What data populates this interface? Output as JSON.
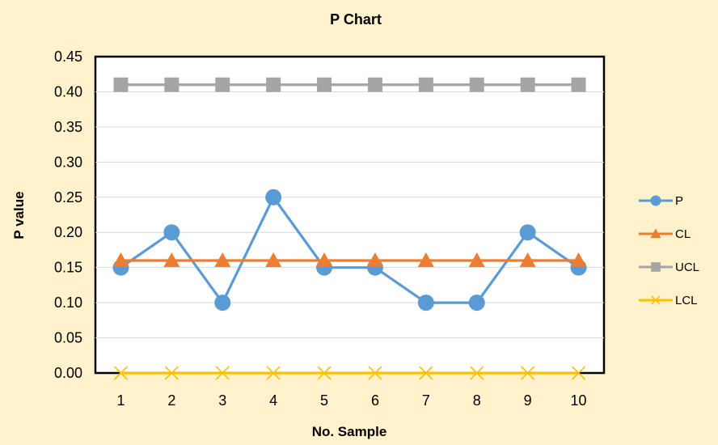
{
  "chart_data": {
    "type": "line",
    "title": "P Chart",
    "xlabel": "No. Sample",
    "ylabel": "P value",
    "categories": [
      "1",
      "2",
      "3",
      "4",
      "5",
      "6",
      "7",
      "8",
      "9",
      "10"
    ],
    "ylim": [
      0,
      0.45
    ],
    "yticks": [
      "0.00",
      "0.05",
      "0.10",
      "0.15",
      "0.20",
      "0.25",
      "0.30",
      "0.35",
      "0.40",
      "0.45"
    ],
    "grid": true,
    "legend_position": "right",
    "series": [
      {
        "name": "P",
        "color": "#5B9BD5",
        "marker": "circle",
        "values": [
          0.15,
          0.2,
          0.1,
          0.25,
          0.15,
          0.15,
          0.1,
          0.1,
          0.2,
          0.15
        ]
      },
      {
        "name": "CL",
        "color": "#ED7D31",
        "marker": "triangle",
        "values": [
          0.16,
          0.16,
          0.16,
          0.16,
          0.16,
          0.16,
          0.16,
          0.16,
          0.16,
          0.16
        ]
      },
      {
        "name": "UCL",
        "color": "#A5A5A5",
        "marker": "square",
        "values": [
          0.41,
          0.41,
          0.41,
          0.41,
          0.41,
          0.41,
          0.41,
          0.41,
          0.41,
          0.41
        ]
      },
      {
        "name": "LCL",
        "color": "#FFC000",
        "marker": "x",
        "values": [
          0,
          0,
          0,
          0,
          0,
          0,
          0,
          0,
          0,
          0
        ]
      }
    ]
  }
}
